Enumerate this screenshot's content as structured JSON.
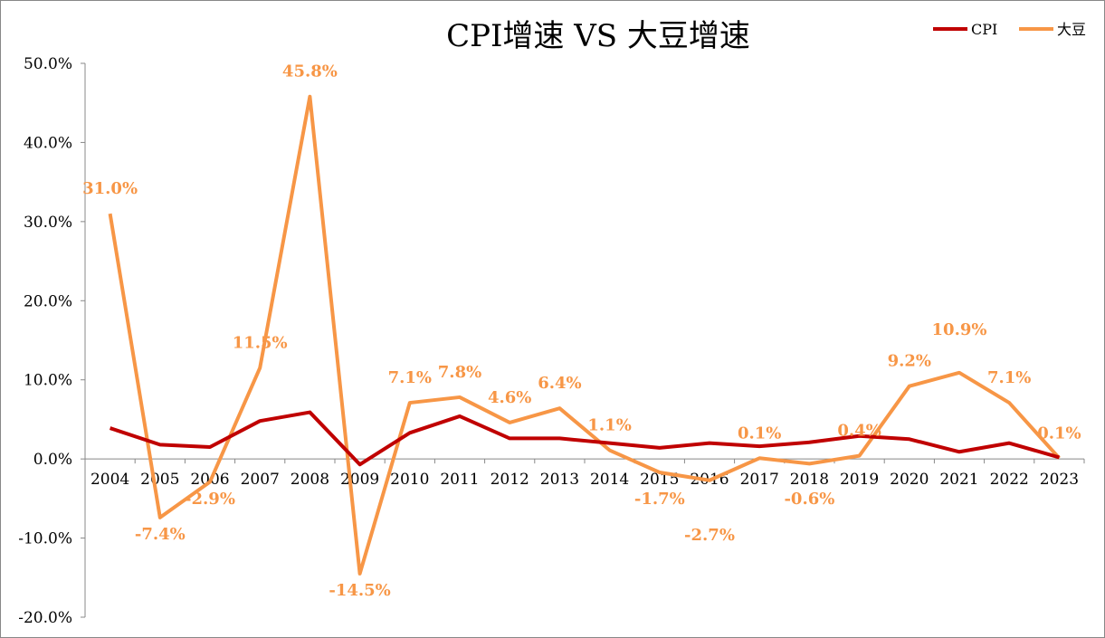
{
  "chart_data": {
    "type": "line",
    "title": "CPI增速 VS 大豆增速",
    "xlabel": "",
    "ylabel": "",
    "ylim": [
      -20,
      50
    ],
    "yticks": [
      -20,
      -10,
      0,
      10,
      20,
      30,
      40,
      50
    ],
    "ytick_labels": [
      "-20.0%",
      "-10.0%",
      "0.0%",
      "10.0%",
      "20.0%",
      "30.0%",
      "40.0%",
      "50.0%"
    ],
    "grid": false,
    "legend_position": "top-right",
    "categories": [
      "2004",
      "2005",
      "2006",
      "2007",
      "2008",
      "2009",
      "2010",
      "2011",
      "2012",
      "2013",
      "2014",
      "2015",
      "2016",
      "2017",
      "2018",
      "2019",
      "2020",
      "2021",
      "2022",
      "2023"
    ],
    "series": [
      {
        "name": "CPI",
        "color": "#C00000",
        "show_labels": false,
        "values": [
          3.9,
          1.8,
          1.5,
          4.8,
          5.9,
          -0.7,
          3.3,
          5.4,
          2.6,
          2.6,
          2.0,
          1.4,
          2.0,
          1.6,
          2.1,
          2.9,
          2.5,
          0.9,
          2.0,
          0.2
        ]
      },
      {
        "name": "大豆",
        "color": "#F79646",
        "show_labels": true,
        "values": [
          31.0,
          -7.4,
          -2.9,
          11.5,
          45.8,
          -14.5,
          7.1,
          7.8,
          4.6,
          6.4,
          1.1,
          -1.7,
          -2.7,
          0.1,
          -0.6,
          0.4,
          9.2,
          10.9,
          7.1,
          0.1
        ],
        "labels": [
          "31.0%",
          "-7.4%",
          "-2.9%",
          "11.5%",
          "45.8%",
          "-14.5%",
          "7.1%",
          "7.8%",
          "4.6%",
          "6.4%",
          "1.1%",
          "-1.7%",
          "-2.7%",
          "0.1%",
          "-0.6%",
          "0.4%",
          "9.2%",
          "10.9%",
          "7.1%",
          "0.1%"
        ]
      }
    ]
  }
}
